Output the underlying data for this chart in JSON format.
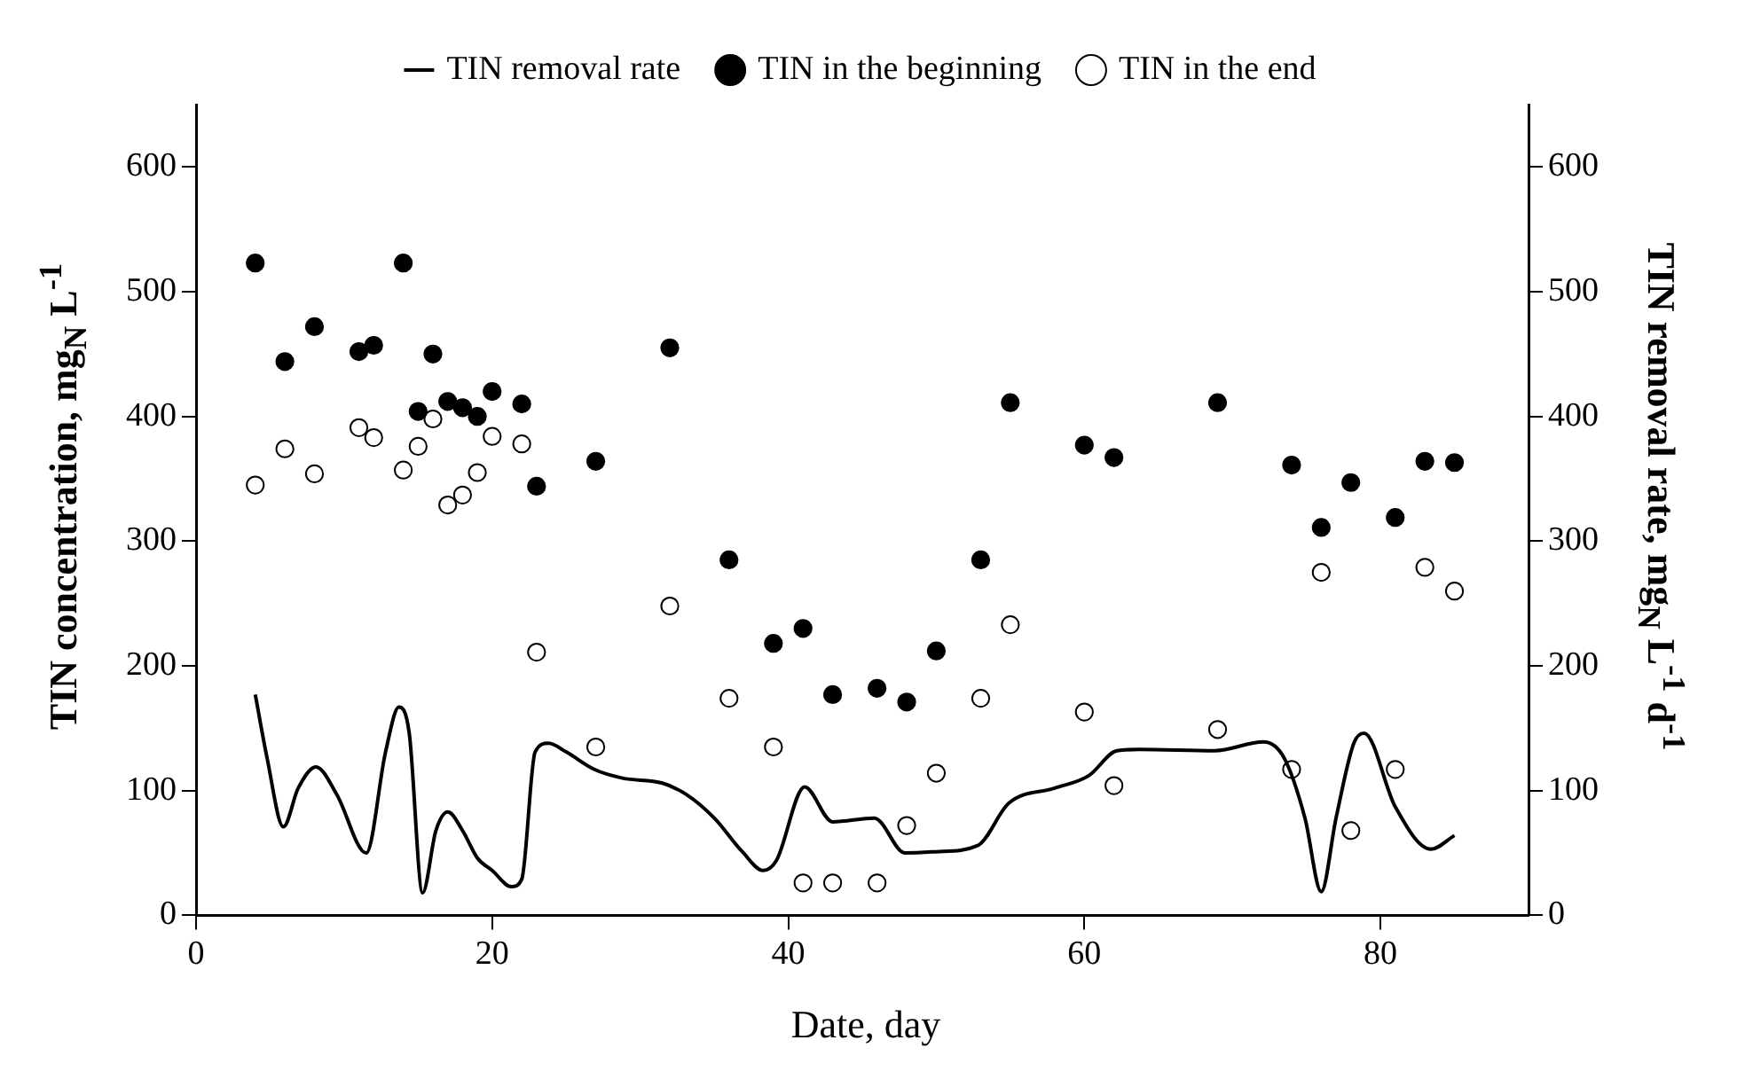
{
  "chart_data": {
    "type": "scatter",
    "xlabel": "Date, day",
    "ylabel": "TIN concentration, mg$_{N}$ L$^{-1}$",
    "y2label": "TIN removal rate, mg$_{N}$ L$^{-1}$ d$^{-1}$",
    "xlim": [
      0,
      90
    ],
    "xticks": [
      0,
      20,
      40,
      60,
      80
    ],
    "ylim": [
      0,
      650
    ],
    "yticks": [
      0,
      100,
      200,
      300,
      400,
      500,
      600
    ],
    "y2lim": [
      0,
      650
    ],
    "y2ticks": [
      0,
      100,
      200,
      300,
      400,
      500,
      600
    ],
    "grid": false,
    "legend": "top",
    "series": [
      {
        "name": "TIN removal rate",
        "type": "line",
        "axis": "y2",
        "color": "#000000",
        "marker": "none",
        "line_style": "solid",
        "x": [
          4,
          4.8,
          5.9,
          6.9,
          8.1,
          9.5,
          11.5,
          12.8,
          13.7,
          14.4,
          15.3,
          16.2,
          17,
          18,
          19,
          20,
          21.3,
          22,
          22.9,
          23.8,
          25,
          26.9,
          28.8,
          31.5,
          33.1,
          35,
          36.9,
          38.3,
          39.2,
          41.1,
          43,
          45.8,
          47.9,
          50,
          52.8,
          54.9,
          58,
          60.3,
          62.2,
          63.7,
          68.8,
          72.1,
          73.5,
          74.9,
          76,
          77,
          78.2,
          78.9,
          81,
          83.4,
          85
        ],
        "values": [
          177,
          126,
          71,
          102,
          119,
          97,
          50,
          131,
          167,
          146,
          18,
          68,
          83,
          68,
          46,
          36,
          23,
          29,
          131,
          138,
          131,
          117,
          110,
          106,
          97,
          78,
          51,
          36,
          44,
          103,
          75,
          78,
          50,
          51,
          56,
          90,
          102,
          112,
          132,
          133,
          132,
          139,
          126,
          78,
          19,
          78,
          138,
          146,
          87,
          53,
          64
        ]
      },
      {
        "name": "TIN in the beginning",
        "type": "scatter",
        "color": "#000000",
        "marker": "circle",
        "x": [
          4,
          6,
          8,
          11,
          12,
          14,
          15,
          16,
          17,
          18,
          19,
          20,
          22,
          23,
          27,
          32,
          36,
          39,
          41,
          43,
          46,
          48,
          50,
          53,
          55,
          60,
          62,
          69,
          74,
          76,
          78,
          81,
          83,
          85
        ],
        "values": [
          523,
          444,
          472,
          452,
          457,
          523,
          404,
          450,
          412,
          407,
          400,
          420,
          410,
          344,
          364,
          455,
          285,
          218,
          230,
          177,
          182,
          171,
          212,
          285,
          411,
          377,
          367,
          411,
          361,
          311,
          347,
          319,
          364,
          363
        ]
      },
      {
        "name": "TIN in the end",
        "type": "scatter",
        "color": "#ffffff",
        "marker": "circle",
        "x": [
          4,
          6,
          8,
          11,
          12,
          14,
          15,
          16,
          17,
          18,
          19,
          20,
          22,
          23,
          27,
          32,
          36,
          39,
          41,
          43,
          46,
          48,
          50,
          53,
          55,
          60,
          62,
          69,
          74,
          76,
          78,
          81,
          83,
          85
        ],
        "values": [
          345,
          374,
          354,
          391,
          383,
          357,
          376,
          398,
          329,
          337,
          355,
          384,
          378,
          211,
          135,
          248,
          174,
          135,
          26,
          26,
          26,
          72,
          114,
          174,
          233,
          163,
          104,
          149,
          117,
          275,
          68,
          117,
          279,
          260
        ]
      }
    ]
  }
}
